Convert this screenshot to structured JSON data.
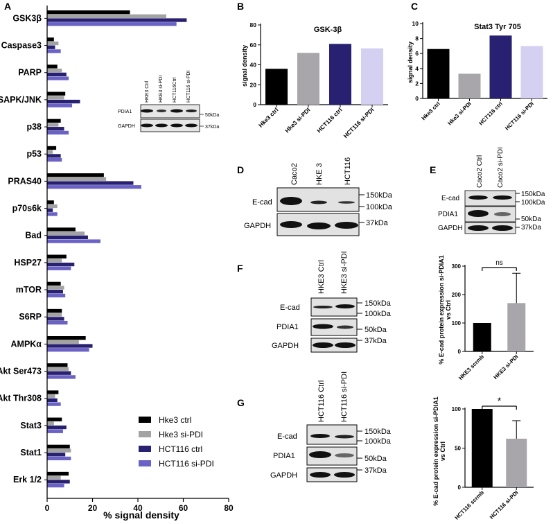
{
  "panels": {
    "A": "A",
    "B": "B",
    "C": "C",
    "D": "D",
    "E": "E",
    "F": "F",
    "G": "G"
  },
  "colors": {
    "hke3_ctrl": "#000000",
    "hke3_sipdi": "#a3a3a3",
    "hct116_ctrl": "#282070",
    "hct116_sipdi": "#6a62c4",
    "hct116_sipdi_light": "#d4d0f2",
    "hke3_sipdi_bar": "#a8a5ab"
  },
  "inset_blot_A": {
    "lanes": [
      "HKE3 Ctrl",
      "HKE3 si-PDI",
      "HCT116Ctrl",
      "HCT116 si-PDI"
    ],
    "rows": [
      "PDIA1",
      "GAPDH"
    ],
    "markers": [
      "50kDa",
      "37kDa"
    ]
  },
  "blot_D": {
    "lanes": [
      "Caco2",
      "HKE 3",
      "HCT116"
    ],
    "rows": [
      "E-cad",
      "GAPDH"
    ],
    "markers": [
      "150kDa",
      "100kDa",
      "37kDa"
    ]
  },
  "blot_E": {
    "lanes": [
      "Caco2 Ctrl",
      "Caco2 si-PDI"
    ],
    "rows": [
      "E-cad",
      "PDIA1",
      "GAPDH"
    ],
    "markers": [
      "150kDa",
      "100kDa",
      "50kDa",
      "37kDa"
    ]
  },
  "blot_F": {
    "lanes": [
      "HKE3 Ctrl",
      "HKE3 si-PDI"
    ],
    "rows": [
      "E-cad",
      "PDIA1",
      "GAPDH"
    ],
    "markers": [
      "150kDa",
      "100kDa",
      "50kDa",
      "37kDa"
    ]
  },
  "blot_G": {
    "lanes": [
      "HCT116 Ctrl",
      "HCT116 si-PDI"
    ],
    "rows": [
      "E-cad",
      "PDIA1",
      "GAPDH"
    ],
    "markers": [
      "150kDa",
      "100kDa",
      "50kDa",
      "37kDa"
    ]
  },
  "chart_data": [
    {
      "id": "A",
      "type": "bar",
      "orientation": "horizontal",
      "title": "",
      "xlabel": "% signal density",
      "xlim": [
        0,
        80
      ],
      "xticks": [
        0,
        20,
        40,
        60,
        80
      ],
      "categories": [
        "GSK3β",
        "Caspase3",
        "PARP",
        "SAPK/JNK",
        "p38",
        "p53",
        "PRAS40",
        "p70s6k",
        "Bad",
        "HSP27",
        "mTOR",
        "S6RP",
        "AMPKα",
        "Akt Ser473",
        "Akt Thr308",
        "Stat3",
        "Stat1",
        "Erk 1/2"
      ],
      "series": [
        {
          "name": "Hke3 ctrl",
          "values": [
            36.5,
            3.0,
            4.5,
            8.0,
            6.0,
            4.0,
            25.0,
            3.0,
            12.5,
            8.5,
            6.0,
            6.5,
            17.0,
            9.0,
            5.0,
            6.5,
            10.0,
            9.5
          ]
        },
        {
          "name": "Hke3 si-PDI",
          "values": [
            52.5,
            5.0,
            6.5,
            7.5,
            5.0,
            2.5,
            26.0,
            4.5,
            16.5,
            6.5,
            7.5,
            6.5,
            14.0,
            9.5,
            3.5,
            3.0,
            10.5,
            6.0
          ]
        },
        {
          "name": "HCT116 ctrl",
          "values": [
            61.5,
            3.5,
            8.5,
            14.5,
            7.5,
            6.0,
            38.0,
            2.5,
            18.0,
            12.0,
            7.0,
            7.5,
            20.0,
            10.5,
            4.5,
            8.5,
            8.0,
            10.0
          ]
        },
        {
          "name": "HCT116 si-PDI",
          "values": [
            57.0,
            6.0,
            9.5,
            11.0,
            9.5,
            6.5,
            41.5,
            4.5,
            23.5,
            10.5,
            8.0,
            9.0,
            18.5,
            12.5,
            6.0,
            7.0,
            10.5,
            7.5
          ]
        }
      ],
      "legend": "bottom-right"
    },
    {
      "id": "B",
      "type": "bar",
      "title": "GSK-3β",
      "ylabel": "signal density",
      "ylim": [
        0,
        80
      ],
      "yticks": [
        0,
        20,
        40,
        60,
        80
      ],
      "categories": [
        "Hke3 ctrl",
        "Hke3 si-PDI",
        "HCT116 ctrl",
        "HCT116 si-PDI"
      ],
      "values": [
        36,
        52,
        61,
        56.5
      ]
    },
    {
      "id": "C",
      "type": "bar",
      "title": "Stat3 Tyr 705",
      "ylabel": "signal density",
      "ylim": [
        0,
        10
      ],
      "yticks": [
        0,
        2,
        4,
        6,
        8,
        10
      ],
      "categories": [
        "Hke3 ctrl",
        "Hke3 si-PDI",
        "HCT116 ctrl",
        "HCT116 si-PDI"
      ],
      "values": [
        6.6,
        3.3,
        8.4,
        7.0
      ]
    },
    {
      "id": "F-chart",
      "type": "bar",
      "title": "",
      "ylabel": "% E-cad protein expression si-PDIA1 vs Ctrl",
      "ylim": [
        0,
        300
      ],
      "yticks": [
        0,
        100,
        200,
        300
      ],
      "categories": [
        "HKE3 scrmb",
        "HKE3 si-PDI"
      ],
      "values": [
        100,
        170
      ],
      "errors": [
        0,
        105
      ],
      "annotation": "ns"
    },
    {
      "id": "G-chart",
      "type": "bar",
      "title": "",
      "ylabel": "% E-cad protein expression si-PDIA1 vs Ctrl",
      "ylim": [
        0,
        100
      ],
      "yticks": [
        0,
        50,
        100
      ],
      "categories": [
        "HCT116 scrmb",
        "HCT116 si-PDI"
      ],
      "values": [
        100,
        62
      ],
      "errors": [
        0,
        23
      ],
      "annotation": "*"
    }
  ]
}
